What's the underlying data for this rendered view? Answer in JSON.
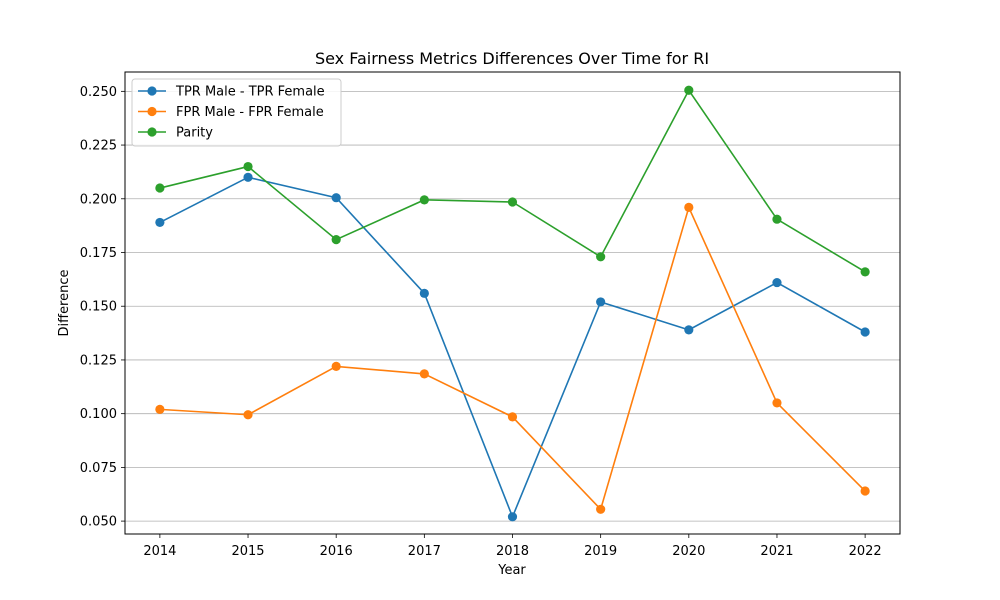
{
  "chart_data": {
    "type": "line",
    "title": "Sex Fairness Metrics Differences Over Time for RI",
    "xlabel": "Year",
    "ylabel": "Difference",
    "x": [
      2014,
      2015,
      2016,
      2017,
      2018,
      2019,
      2020,
      2021,
      2022
    ],
    "ylim": [
      0.044,
      0.259
    ],
    "yticks": [
      0.05,
      0.075,
      0.1,
      0.125,
      0.15,
      0.175,
      0.2,
      0.225,
      0.25
    ],
    "ytick_labels": [
      "0.050",
      "0.075",
      "0.100",
      "0.125",
      "0.150",
      "0.175",
      "0.200",
      "0.225",
      "0.250"
    ],
    "grid": "horizontal",
    "legend_position": "top-left",
    "series": [
      {
        "name": "TPR Male - TPR Female",
        "color": "#1f77b4",
        "values": [
          0.189,
          0.21,
          0.2005,
          0.156,
          0.052,
          0.152,
          0.139,
          0.161,
          0.138
        ]
      },
      {
        "name": "FPR Male - FPR Female",
        "color": "#ff7f0e",
        "values": [
          0.102,
          0.0995,
          0.122,
          0.1185,
          0.0985,
          0.0555,
          0.196,
          0.105,
          0.064
        ]
      },
      {
        "name": "Parity",
        "color": "#2ca02c",
        "values": [
          0.205,
          0.215,
          0.181,
          0.1995,
          0.1985,
          0.173,
          0.2505,
          0.1905,
          0.166
        ]
      }
    ]
  }
}
